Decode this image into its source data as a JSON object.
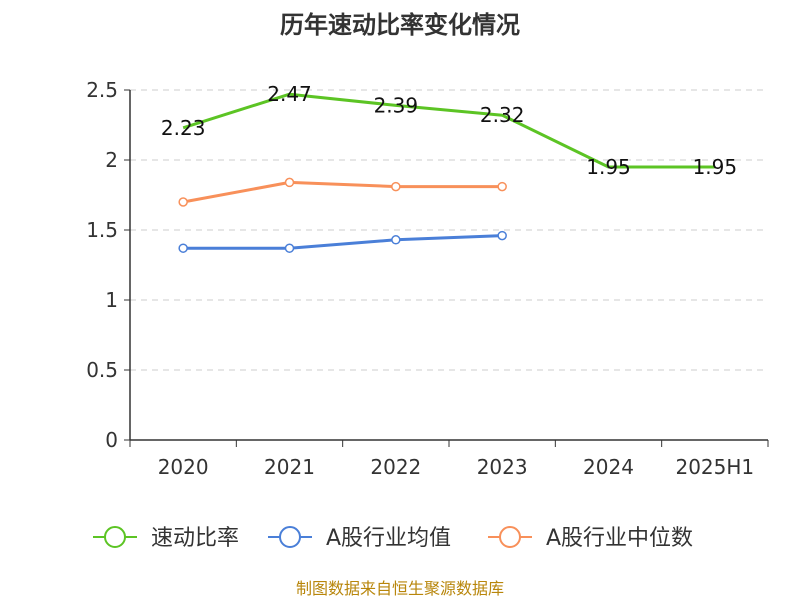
{
  "chart_data": {
    "type": "line",
    "title": "历年速动比率变化情况",
    "categories": [
      "2020",
      "2021",
      "2022",
      "2023",
      "2024",
      "2025H1"
    ],
    "ylim": [
      0,
      2.5
    ],
    "yticks": [
      "0",
      "0.5",
      "1",
      "1.5",
      "2",
      "2.5"
    ],
    "grid": true,
    "legend_position": "bottom",
    "series": [
      {
        "name": "速动比率",
        "color": "#5cc424",
        "values": [
          2.23,
          2.47,
          2.39,
          2.32,
          1.95,
          1.95
        ],
        "labels": [
          "2.23",
          "2.47",
          "2.39",
          "2.32",
          "1.95",
          "1.95"
        ]
      },
      {
        "name": "A股行业均值",
        "color": "#4a7fd8",
        "values": [
          1.37,
          1.37,
          1.43,
          1.46,
          null,
          null
        ]
      },
      {
        "name": "A股行业中位数",
        "color": "#f8905a",
        "values": [
          1.7,
          1.84,
          1.81,
          1.81,
          null,
          null
        ]
      }
    ],
    "source": "制图数据来自恒生聚源数据库"
  }
}
